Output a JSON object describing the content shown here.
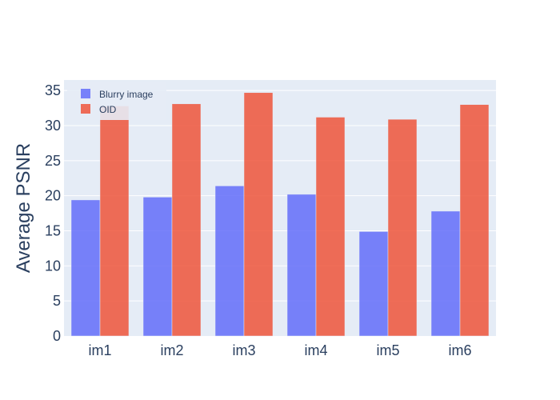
{
  "chart_data": {
    "type": "bar",
    "categories": [
      "im1",
      "im2",
      "im3",
      "im4",
      "im5",
      "im6"
    ],
    "series": [
      {
        "name": "Blurry image",
        "values": [
          19.4,
          19.8,
          21.4,
          20.2,
          14.9,
          17.8
        ],
        "color": "#636efa"
      },
      {
        "name": "OID",
        "values": [
          32.8,
          33.1,
          34.7,
          31.2,
          30.9,
          33.0
        ],
        "color": "#ef553b"
      }
    ],
    "ylabel": "Average PSNR",
    "ylim": [
      0,
      36.5
    ],
    "yticks": [
      0,
      5,
      10,
      15,
      20,
      25,
      30,
      35
    ],
    "grid": true,
    "legend_position": "top-left",
    "colors": {
      "plot_bg": "#e5ecf6",
      "grid": "#ffffff",
      "text": "#2a3f5f"
    }
  }
}
